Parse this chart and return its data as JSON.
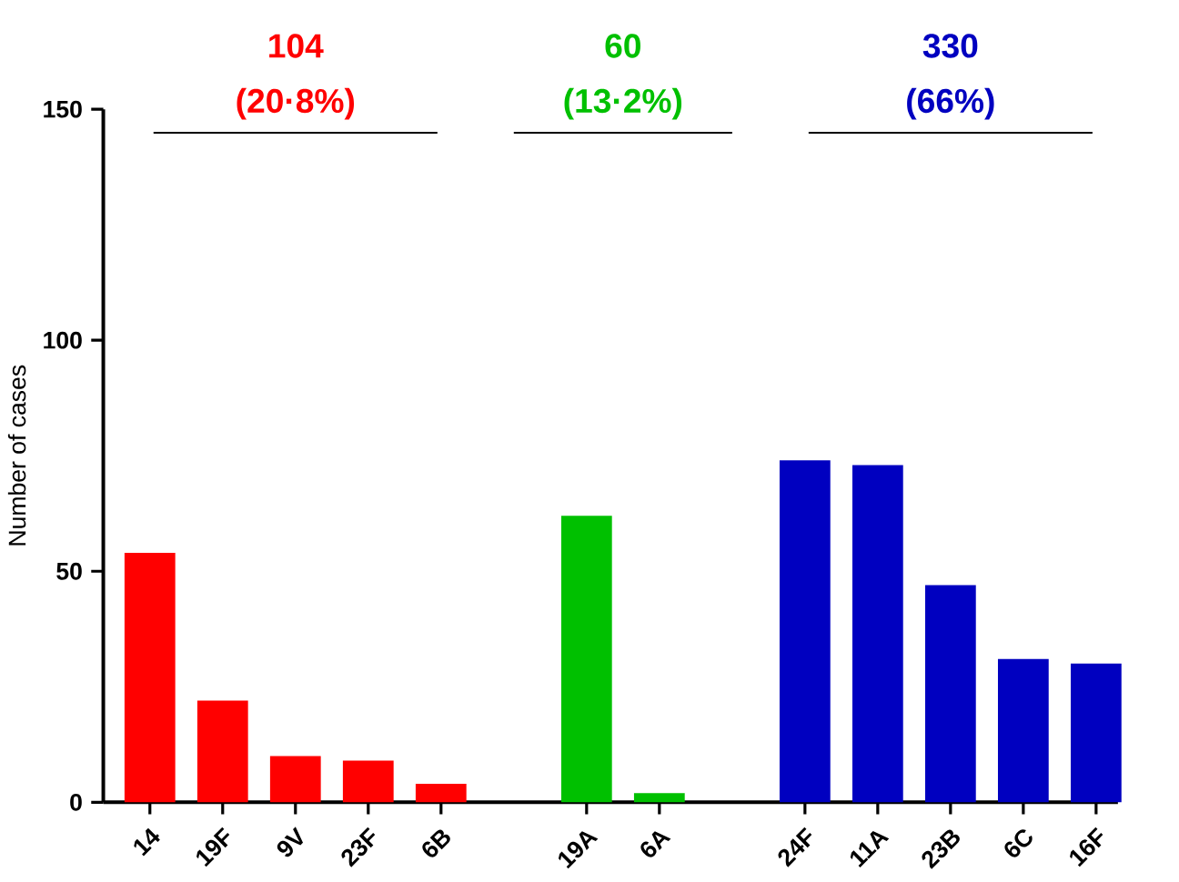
{
  "chart_data": {
    "type": "bar",
    "ylabel": "Number of cases",
    "categories": [
      "14",
      "19F",
      "9V",
      "23F",
      "6B",
      null,
      "19A",
      "6A",
      null,
      "24F",
      "11A",
      "23B",
      "6C",
      "16F"
    ],
    "values": [
      54,
      22,
      10,
      9,
      4,
      null,
      62,
      2,
      null,
      74,
      73,
      47,
      31,
      30
    ],
    "colors": [
      "#ff0000",
      "#ff0000",
      "#ff0000",
      "#ff0000",
      "#ff0000",
      null,
      "#00c000",
      "#00c000",
      null,
      "#0000c0",
      "#0000c0",
      "#0000c0",
      "#0000c0",
      "#0000c0"
    ],
    "ylim": [
      0,
      150
    ],
    "yticks": [
      0,
      50,
      100,
      150
    ],
    "annotations": [
      "104",
      "(20·8%)",
      "60",
      "(13·2%)",
      "330",
      "(66%)"
    ]
  }
}
